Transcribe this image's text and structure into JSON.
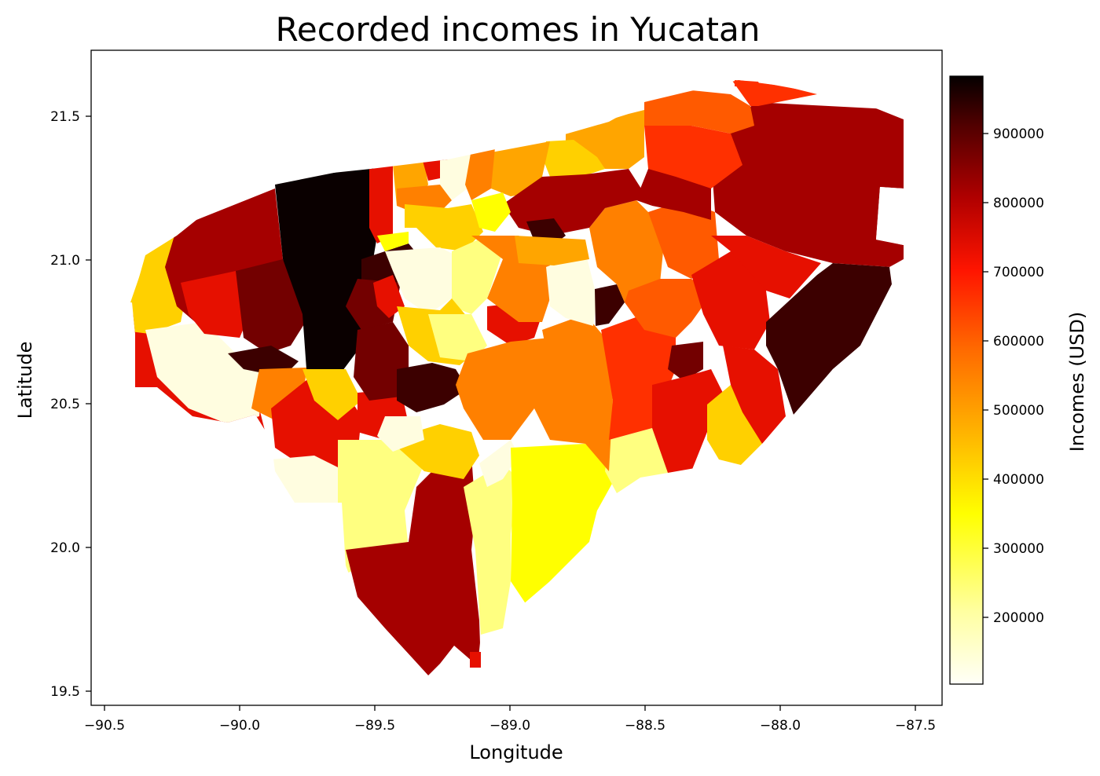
{
  "title": "Recorded incomes in Yucatan",
  "axes": {
    "xlabel": "Longitude",
    "ylabel": "Latitude",
    "xticks": [
      "−90.5",
      "−90.0",
      "−89.5",
      "−89.0",
      "−88.5",
      "−88.0",
      "−87.5"
    ],
    "yticks": [
      "19.5",
      "20.0",
      "20.5",
      "21.0",
      "21.5"
    ],
    "xlim": [
      -90.55,
      -87.4
    ],
    "ylim": [
      19.45,
      21.72
    ]
  },
  "colorbar": {
    "label": "Incomes (USD)",
    "colormap": "hot_r",
    "range": [
      105000,
      985000
    ],
    "ticks": [
      "200000",
      "300000",
      "400000",
      "500000",
      "600000",
      "700000",
      "800000",
      "900000"
    ]
  },
  "colors": {
    "c1": "#fffde0",
    "c2": "#ffff80",
    "c3": "#ffff00",
    "c4": "#ffd000",
    "c5": "#ffa500",
    "c6": "#ff8000",
    "c7": "#ff5a00",
    "c8": "#ff3000",
    "c9": "#e61000",
    "c10": "#a50000",
    "c11": "#730000",
    "c12": "#3c0000",
    "c13": "#0a0000"
  }
}
